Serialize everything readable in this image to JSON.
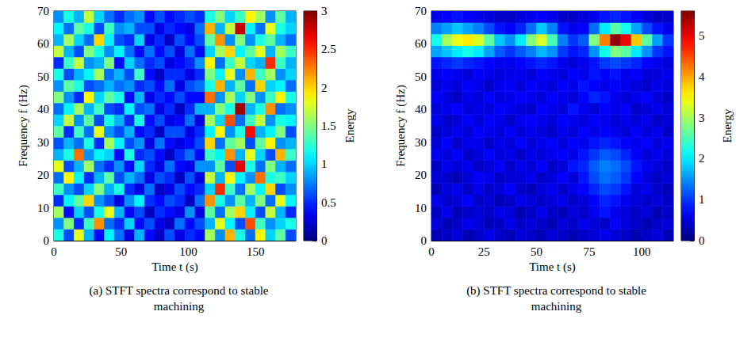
{
  "chart_data": [
    {
      "type": "heatmap",
      "title": "(a) STFT spectra correspond to stable machining",
      "xlabel": "Time t (s)",
      "ylabel": "Frequency f (Hz)",
      "xlim": [
        0,
        180
      ],
      "ylim": [
        0,
        70
      ],
      "xticks": [
        0,
        50,
        100,
        150
      ],
      "yticks": [
        0,
        10,
        20,
        30,
        40,
        50,
        60,
        70
      ],
      "colorbar_label": "Energy",
      "colorbar_range": [
        0,
        3
      ],
      "colorbar_ticks": [
        0,
        0.5,
        1,
        1.5,
        2,
        2.5,
        3
      ],
      "x": [
        3.75,
        11.25,
        18.75,
        26.25,
        33.75,
        41.25,
        48.75,
        56.25,
        63.75,
        71.25,
        78.75,
        86.25,
        93.75,
        101.25,
        108.75,
        116.25,
        123.75,
        131.25,
        138.75,
        146.25,
        153.75,
        161.25,
        168.75,
        176.25
      ],
      "y": [
        1.75,
        5.25,
        8.75,
        12.25,
        15.75,
        19.25,
        22.75,
        26.25,
        29.75,
        33.25,
        36.75,
        40.25,
        43.75,
        47.25,
        50.75,
        54.25,
        57.75,
        61.25,
        64.75,
        68.25
      ],
      "values": [
        [
          1.2,
          0.6,
          1.8,
          0.9,
          0.4,
          1.1,
          0.7,
          0.3,
          0.9,
          0.4,
          0.2,
          0.6,
          0.3,
          0.5,
          0.4,
          1.6,
          0.8,
          2.1,
          1.2,
          0.7,
          1.9,
          1.0,
          1.4,
          0.6
        ],
        [
          0.8,
          1.5,
          0.5,
          1.3,
          2.2,
          0.7,
          0.5,
          1.0,
          0.4,
          0.6,
          0.3,
          0.2,
          0.7,
          0.4,
          0.6,
          0.9,
          1.8,
          1.1,
          0.6,
          2.4,
          1.3,
          0.8,
          1.0,
          1.2
        ],
        [
          1.6,
          0.4,
          1.0,
          0.6,
          1.2,
          1.8,
          0.9,
          0.4,
          0.6,
          0.2,
          0.5,
          0.4,
          0.3,
          0.8,
          0.3,
          1.4,
          0.7,
          1.6,
          2.0,
          1.1,
          0.6,
          1.7,
          0.9,
          0.5
        ],
        [
          0.5,
          1.1,
          1.4,
          2.0,
          0.8,
          0.6,
          0.3,
          0.8,
          1.1,
          0.5,
          0.4,
          0.6,
          0.5,
          0.2,
          0.7,
          2.2,
          1.2,
          0.8,
          1.4,
          0.9,
          1.5,
          0.7,
          1.8,
          1.1
        ],
        [
          1.3,
          0.8,
          0.6,
          1.0,
          1.5,
          0.9,
          1.2,
          0.5,
          0.3,
          0.7,
          0.2,
          0.3,
          0.6,
          0.4,
          0.5,
          1.0,
          2.5,
          1.3,
          0.7,
          1.6,
          1.1,
          2.0,
          0.6,
          0.8
        ],
        [
          0.7,
          1.9,
          1.1,
          0.5,
          0.9,
          1.4,
          0.6,
          0.9,
          0.7,
          0.3,
          0.6,
          0.5,
          0.2,
          0.6,
          0.3,
          1.7,
          0.9,
          1.9,
          1.1,
          0.8,
          2.3,
          1.2,
          1.3,
          1.0
        ],
        [
          1.8,
          0.6,
          0.9,
          1.6,
          0.7,
          0.5,
          0.8,
          0.4,
          1.0,
          0.5,
          0.3,
          0.7,
          0.4,
          0.3,
          0.8,
          0.8,
          1.4,
          0.6,
          2.7,
          1.2,
          0.7,
          1.5,
          0.9,
          0.7
        ],
        [
          0.9,
          1.2,
          2.3,
          0.8,
          1.1,
          1.0,
          0.4,
          1.2,
          0.5,
          0.6,
          0.4,
          0.2,
          0.5,
          0.7,
          0.4,
          1.3,
          1.1,
          2.2,
          0.9,
          1.8,
          1.0,
          0.6,
          2.1,
          1.3
        ],
        [
          0.6,
          0.9,
          0.7,
          1.2,
          0.5,
          1.6,
          1.1,
          0.6,
          0.8,
          0.3,
          0.7,
          0.4,
          0.3,
          0.4,
          0.6,
          2.0,
          0.7,
          1.4,
          1.6,
          0.6,
          1.4,
          1.9,
          0.8,
          0.9
        ],
        [
          1.4,
          0.5,
          1.3,
          0.7,
          1.8,
          0.8,
          0.6,
          0.9,
          0.4,
          0.5,
          0.2,
          0.6,
          0.6,
          0.3,
          0.5,
          1.1,
          1.9,
          0.8,
          1.2,
          2.6,
          0.9,
          1.1,
          1.5,
          0.6
        ],
        [
          1.0,
          1.7,
          0.8,
          1.4,
          0.6,
          1.2,
          0.9,
          0.5,
          1.2,
          0.4,
          0.6,
          0.3,
          0.4,
          0.7,
          0.3,
          1.6,
          1.0,
          2.4,
          0.7,
          1.3,
          1.7,
          0.8,
          1.2,
          1.1
        ],
        [
          0.7,
          1.1,
          1.6,
          0.9,
          1.3,
          0.6,
          0.5,
          1.1,
          0.6,
          0.7,
          0.3,
          0.5,
          0.2,
          0.5,
          0.9,
          0.9,
          1.5,
          1.2,
          2.9,
          0.9,
          1.2,
          2.2,
          0.7,
          0.8
        ],
        [
          1.5,
          0.8,
          0.5,
          1.9,
          1.0,
          1.4,
          1.2,
          0.4,
          0.9,
          0.3,
          0.5,
          0.4,
          0.6,
          0.4,
          0.4,
          2.3,
          0.8,
          1.6,
          1.0,
          1.5,
          0.8,
          1.3,
          1.9,
          1.2
        ],
        [
          0.8,
          1.4,
          1.2,
          0.6,
          0.7,
          0.9,
          0.7,
          0.8,
          0.5,
          0.6,
          0.4,
          0.7,
          0.3,
          0.6,
          0.7,
          1.2,
          2.1,
          0.9,
          1.4,
          0.7,
          2.0,
          1.0,
          1.1,
          0.7
        ],
        [
          1.2,
          0.6,
          0.9,
          1.1,
          1.6,
          0.7,
          0.9,
          0.6,
          1.3,
          0.4,
          0.2,
          0.5,
          0.5,
          0.3,
          0.5,
          1.5,
          1.1,
          1.8,
          0.8,
          2.1,
          1.3,
          1.6,
          0.8,
          1.0
        ],
        [
          0.5,
          1.3,
          1.7,
          0.8,
          0.9,
          1.5,
          0.4,
          1.0,
          0.7,
          0.5,
          0.6,
          0.3,
          0.4,
          0.5,
          0.8,
          1.9,
          0.7,
          1.3,
          1.7,
          1.0,
          0.9,
          2.5,
          1.3,
          0.9
        ],
        [
          1.7,
          0.9,
          0.6,
          1.5,
          1.2,
          0.8,
          1.1,
          0.7,
          0.4,
          0.7,
          0.4,
          0.6,
          0.3,
          0.7,
          0.4,
          1.0,
          1.6,
          2.0,
          1.1,
          1.4,
          1.8,
          0.9,
          1.6,
          1.3
        ],
        [
          0.9,
          1.6,
          1.0,
          0.7,
          2.0,
          1.1,
          0.6,
          0.5,
          1.0,
          0.3,
          0.5,
          0.2,
          0.6,
          0.4,
          0.6,
          1.4,
          2.2,
          0.8,
          1.5,
          0.8,
          1.2,
          1.4,
          0.9,
          0.7
        ],
        [
          1.1,
          0.7,
          1.4,
          1.2,
          0.6,
          1.3,
          0.8,
          0.9,
          0.6,
          0.6,
          0.3,
          0.5,
          0.4,
          0.3,
          0.7,
          2.1,
          0.9,
          1.7,
          2.8,
          1.1,
          0.7,
          1.8,
          1.2,
          1.0
        ],
        [
          0.8,
          1.2,
          0.9,
          1.7,
          1.0,
          0.7,
          0.5,
          0.7,
          0.8,
          0.4,
          0.6,
          0.4,
          0.5,
          0.6,
          0.5,
          1.2,
          1.5,
          1.0,
          1.3,
          1.9,
          1.6,
          0.8,
          1.4,
          0.9
        ]
      ]
    },
    {
      "type": "heatmap",
      "title": "(b) STFT spectra correspond to stable machining",
      "xlabel": "Time t (s)",
      "ylabel": "Frequency f (Hz)",
      "xlim": [
        0,
        115
      ],
      "ylim": [
        0,
        70
      ],
      "xticks": [
        0,
        25,
        50,
        75,
        100
      ],
      "yticks": [
        0,
        10,
        20,
        30,
        40,
        50,
        60,
        70
      ],
      "colorbar_label": "Energy",
      "colorbar_range": [
        0,
        5.6
      ],
      "colorbar_ticks": [
        0,
        1,
        2,
        3,
        4,
        5
      ],
      "x": [
        2.5,
        7.5,
        12.5,
        17.5,
        22.5,
        27.5,
        32.5,
        37.5,
        42.5,
        47.5,
        52.5,
        57.5,
        62.5,
        67.5,
        72.5,
        77.5,
        82.5,
        87.5,
        92.5,
        97.5,
        102.5,
        107.5,
        112.5
      ],
      "y": [
        1.75,
        5.25,
        8.75,
        12.25,
        15.75,
        19.25,
        22.75,
        26.25,
        29.75,
        33.25,
        36.75,
        40.25,
        43.75,
        47.25,
        50.75,
        54.25,
        57.75,
        61.25,
        64.75,
        68.25
      ],
      "values": [
        [
          0.3,
          0.4,
          0.5,
          0.3,
          0.4,
          0.6,
          0.4,
          0.3,
          0.5,
          0.4,
          0.3,
          0.5,
          0.4,
          0.3,
          0.4,
          0.5,
          0.6,
          0.5,
          0.4,
          0.3,
          0.4,
          0.5,
          0.3
        ],
        [
          0.5,
          0.3,
          0.4,
          0.6,
          0.5,
          0.3,
          0.4,
          0.6,
          0.4,
          0.5,
          0.4,
          0.3,
          0.5,
          0.4,
          0.6,
          0.5,
          0.4,
          0.7,
          0.5,
          0.4,
          0.3,
          0.4,
          0.5
        ],
        [
          0.4,
          0.6,
          0.3,
          0.4,
          0.5,
          0.4,
          0.6,
          0.5,
          0.3,
          0.4,
          0.6,
          0.4,
          0.3,
          0.5,
          0.4,
          0.6,
          0.8,
          0.6,
          0.5,
          0.4,
          0.5,
          0.3,
          0.4
        ],
        [
          0.6,
          0.4,
          0.5,
          0.7,
          0.4,
          0.5,
          0.3,
          0.4,
          0.6,
          0.5,
          0.4,
          0.5,
          0.6,
          0.4,
          0.5,
          0.7,
          0.9,
          0.8,
          0.6,
          0.5,
          0.4,
          0.5,
          0.4
        ],
        [
          0.3,
          0.5,
          0.6,
          0.4,
          0.6,
          0.4,
          0.5,
          0.7,
          0.4,
          0.3,
          0.5,
          0.6,
          0.4,
          0.6,
          0.7,
          0.9,
          1.1,
          1.0,
          0.8,
          0.5,
          0.6,
          0.4,
          0.3
        ],
        [
          0.5,
          0.4,
          0.3,
          0.5,
          0.7,
          0.6,
          0.4,
          0.5,
          0.5,
          0.6,
          0.4,
          0.5,
          0.7,
          0.5,
          0.8,
          1.1,
          1.3,
          1.2,
          1.0,
          0.7,
          0.5,
          0.4,
          0.5
        ],
        [
          0.4,
          0.6,
          0.5,
          0.6,
          0.4,
          0.5,
          0.7,
          0.4,
          0.6,
          0.5,
          0.7,
          0.4,
          0.5,
          0.8,
          0.9,
          1.2,
          1.4,
          1.3,
          1.1,
          0.8,
          0.6,
          0.5,
          0.4
        ],
        [
          0.6,
          0.5,
          0.7,
          0.4,
          0.5,
          0.7,
          0.5,
          0.6,
          0.4,
          0.6,
          0.5,
          0.6,
          0.7,
          0.6,
          0.8,
          1.0,
          1.2,
          1.1,
          0.9,
          0.7,
          0.5,
          0.6,
          0.5
        ],
        [
          0.5,
          0.7,
          0.4,
          0.6,
          0.6,
          0.4,
          0.6,
          0.5,
          0.7,
          0.5,
          0.6,
          0.7,
          0.5,
          0.7,
          0.6,
          0.8,
          0.9,
          0.8,
          0.7,
          0.6,
          0.7,
          0.5,
          0.6
        ],
        [
          0.4,
          0.5,
          0.6,
          0.5,
          0.7,
          0.6,
          0.5,
          0.7,
          0.5,
          0.6,
          0.5,
          0.4,
          0.6,
          0.5,
          0.7,
          0.6,
          0.7,
          0.6,
          0.5,
          0.7,
          0.5,
          0.6,
          0.4
        ],
        [
          0.6,
          0.4,
          0.5,
          0.7,
          0.5,
          0.7,
          0.6,
          0.4,
          0.6,
          0.7,
          0.6,
          0.5,
          0.7,
          0.6,
          0.5,
          0.7,
          0.6,
          0.5,
          0.6,
          0.5,
          0.6,
          0.4,
          0.5
        ],
        [
          0.5,
          0.6,
          0.7,
          0.5,
          0.6,
          0.5,
          0.7,
          0.6,
          0.5,
          0.4,
          0.7,
          0.6,
          0.5,
          0.8,
          0.6,
          0.5,
          0.7,
          0.6,
          0.7,
          0.4,
          0.5,
          0.6,
          0.5
        ],
        [
          0.7,
          0.5,
          0.4,
          0.6,
          0.5,
          0.7,
          0.5,
          0.6,
          0.7,
          0.6,
          0.5,
          0.7,
          0.6,
          0.5,
          0.7,
          0.9,
          0.8,
          0.6,
          0.5,
          0.6,
          0.7,
          0.5,
          0.4
        ],
        [
          0.5,
          0.6,
          0.5,
          0.7,
          0.6,
          0.4,
          0.6,
          0.7,
          0.5,
          0.7,
          0.6,
          0.5,
          0.7,
          0.6,
          0.8,
          0.7,
          0.6,
          0.7,
          0.6,
          0.5,
          0.4,
          0.6,
          0.5
        ],
        [
          0.6,
          0.7,
          0.6,
          0.5,
          0.7,
          0.6,
          0.5,
          0.6,
          0.6,
          0.5,
          0.7,
          0.6,
          0.5,
          0.7,
          0.6,
          0.8,
          0.7,
          0.8,
          0.6,
          0.7,
          0.5,
          0.5,
          0.6
        ],
        [
          0.8,
          0.9,
          1.0,
          0.9,
          0.8,
          0.7,
          0.6,
          0.6,
          0.7,
          0.8,
          0.9,
          0.8,
          0.6,
          0.5,
          0.6,
          0.8,
          1.0,
          1.1,
          1.0,
          0.9,
          0.7,
          0.6,
          0.5
        ],
        [
          1.6,
          1.8,
          2.0,
          2.2,
          2.0,
          1.6,
          1.2,
          1.0,
          1.2,
          1.4,
          1.7,
          1.5,
          1.0,
          0.8,
          0.9,
          1.5,
          2.2,
          2.8,
          2.6,
          2.0,
          1.5,
          1.0,
          0.8
        ],
        [
          2.2,
          3.0,
          3.4,
          3.6,
          3.3,
          2.6,
          1.8,
          1.5,
          2.0,
          2.8,
          3.3,
          2.5,
          1.4,
          1.0,
          1.2,
          2.8,
          4.2,
          5.5,
          5.0,
          3.8,
          2.6,
          1.6,
          1.0
        ],
        [
          1.4,
          1.6,
          1.8,
          1.6,
          1.4,
          1.1,
          0.8,
          0.7,
          0.9,
          1.3,
          1.8,
          1.4,
          0.8,
          0.6,
          0.7,
          1.3,
          2.0,
          2.6,
          2.2,
          1.6,
          1.1,
          0.8,
          0.6
        ],
        [
          0.6,
          0.7,
          0.8,
          0.7,
          0.6,
          0.5,
          0.4,
          0.4,
          0.5,
          0.6,
          0.7,
          0.6,
          0.4,
          0.4,
          0.5,
          0.6,
          0.8,
          0.9,
          0.8,
          0.7,
          0.5,
          0.4,
          0.4
        ]
      ]
    }
  ]
}
